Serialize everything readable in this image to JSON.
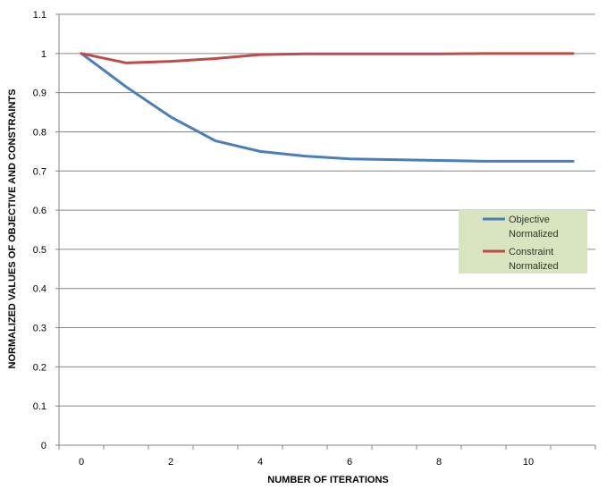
{
  "chart_data": {
    "type": "line",
    "title": "",
    "xlabel": "NUMBER OF ITERATIONS",
    "ylabel": "NORMALIZED VALUES OF OBJECTIVE AND CONSTRAINTS",
    "xlim": [
      -0.5,
      11.5
    ],
    "ylim": [
      0,
      1.1
    ],
    "x_ticks": [
      0,
      2,
      4,
      6,
      8,
      10
    ],
    "y_ticks": [
      0,
      0.1,
      0.2,
      0.3,
      0.4,
      0.5,
      0.6,
      0.7,
      0.8,
      0.9,
      1,
      1.1
    ],
    "grid": "horizontal",
    "legend_position": "right",
    "legend_background": "#d7e4bd",
    "x": [
      0,
      1,
      2,
      3,
      4,
      5,
      6,
      7,
      8,
      9,
      10,
      11
    ],
    "series": [
      {
        "name": "Objective Normalized",
        "legend_lines": [
          "Objective",
          "Normalized"
        ],
        "color": "#4a7ebb",
        "values": [
          1.0,
          0.915,
          0.838,
          0.777,
          0.75,
          0.738,
          0.731,
          0.729,
          0.727,
          0.725,
          0.725,
          0.725
        ]
      },
      {
        "name": "Constraint Normalized",
        "legend_lines": [
          "Constraint",
          "Normalized"
        ],
        "color": "#be4b48",
        "values": [
          1.0,
          0.976,
          0.98,
          0.987,
          0.997,
          0.999,
          0.999,
          0.999,
          0.999,
          1.0,
          1.0,
          1.0
        ]
      }
    ]
  }
}
